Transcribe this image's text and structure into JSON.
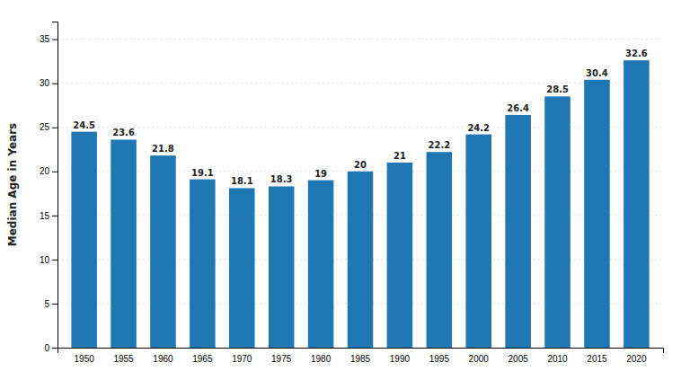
{
  "chart_data": {
    "type": "bar",
    "ylabel": "Median Age in Years",
    "categories": [
      "1950",
      "1955",
      "1960",
      "1965",
      "1970",
      "1975",
      "1980",
      "1985",
      "1990",
      "1995",
      "2000",
      "2005",
      "2010",
      "2015",
      "2020"
    ],
    "values": [
      24.5,
      23.6,
      21.8,
      19.1,
      18.1,
      18.3,
      19,
      20,
      21,
      22.2,
      24.2,
      26.4,
      28.5,
      30.4,
      32.6
    ],
    "ylim": [
      0,
      37
    ],
    "yticks": [
      0,
      5,
      10,
      15,
      20,
      25,
      30,
      35
    ],
    "grid": true,
    "data_labels": true
  }
}
